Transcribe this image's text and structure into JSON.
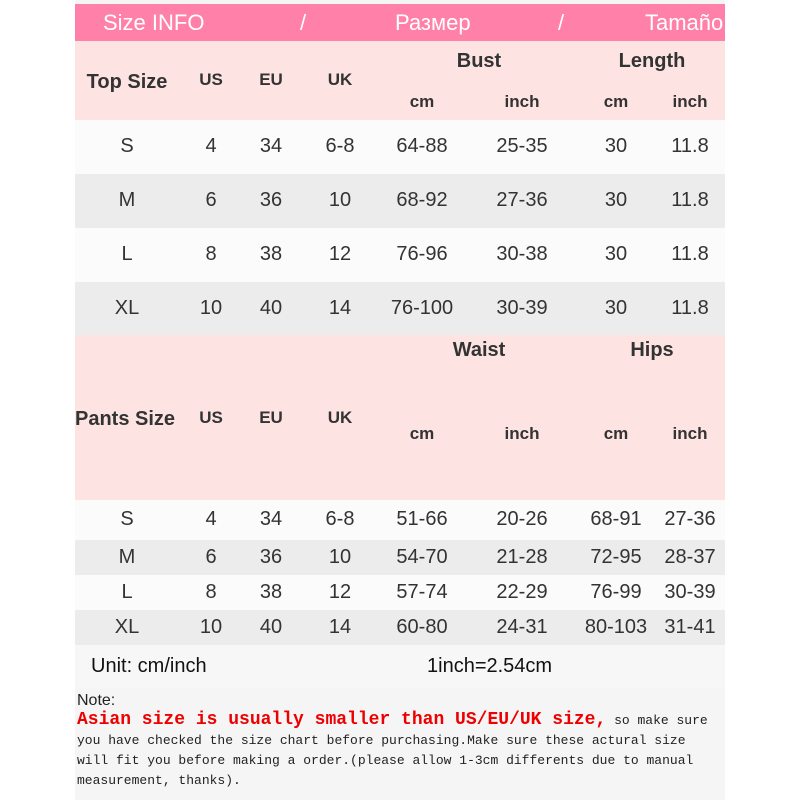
{
  "banner": {
    "parts": [
      "Size INFO",
      "/",
      "Размер",
      "/",
      "Tamaño"
    ]
  },
  "top": {
    "title": "Top Size",
    "us": "US",
    "eu": "EU",
    "uk": "UK",
    "bust": "Bust",
    "length": "Length",
    "cm": "cm",
    "inch": "inch",
    "rows": [
      [
        "S",
        "4",
        "34",
        "6-8",
        "64-88",
        "25-35",
        "30",
        "11.8"
      ],
      [
        "M",
        "6",
        "36",
        "10",
        "68-92",
        "27-36",
        "30",
        "11.8"
      ],
      [
        "L",
        "8",
        "38",
        "12",
        "76-96",
        "30-38",
        "30",
        "11.8"
      ],
      [
        "XL",
        "10",
        "40",
        "14",
        "76-100",
        "30-39",
        "30",
        "11.8"
      ]
    ]
  },
  "pants": {
    "title": "Pants Size",
    "us": "US",
    "eu": "EU",
    "uk": "UK",
    "waist": "Waist",
    "hips": "Hips",
    "cm": "cm",
    "inch": "inch",
    "rows": [
      [
        "S",
        "4",
        "34",
        "6-8",
        "51-66",
        "20-26",
        "68-91",
        "27-36"
      ],
      [
        "M",
        "6",
        "36",
        "10",
        "54-70",
        "21-28",
        "72-95",
        "28-37"
      ],
      [
        "L",
        "8",
        "38",
        "12",
        "57-74",
        "22-29",
        "76-99",
        "30-39"
      ],
      [
        "XL",
        "10",
        "40",
        "14",
        "60-80",
        "24-31",
        "80-103",
        "31-41"
      ]
    ]
  },
  "unit": {
    "label": "Unit: cm/inch",
    "conversion": "1inch=2.54cm"
  },
  "note": {
    "label": "Note:",
    "warning": "Asian size is usually smaller than US/EU/UK size,",
    "text": " so make sure you have checked the size chart before purchasing.Make sure these actural size will fit you before making a order.(please allow 1-3cm differents due to manual measurement, thanks)."
  },
  "colors": {
    "banner": "#ff80a8",
    "header": "#fde4e2",
    "warning": "#ee0000"
  }
}
